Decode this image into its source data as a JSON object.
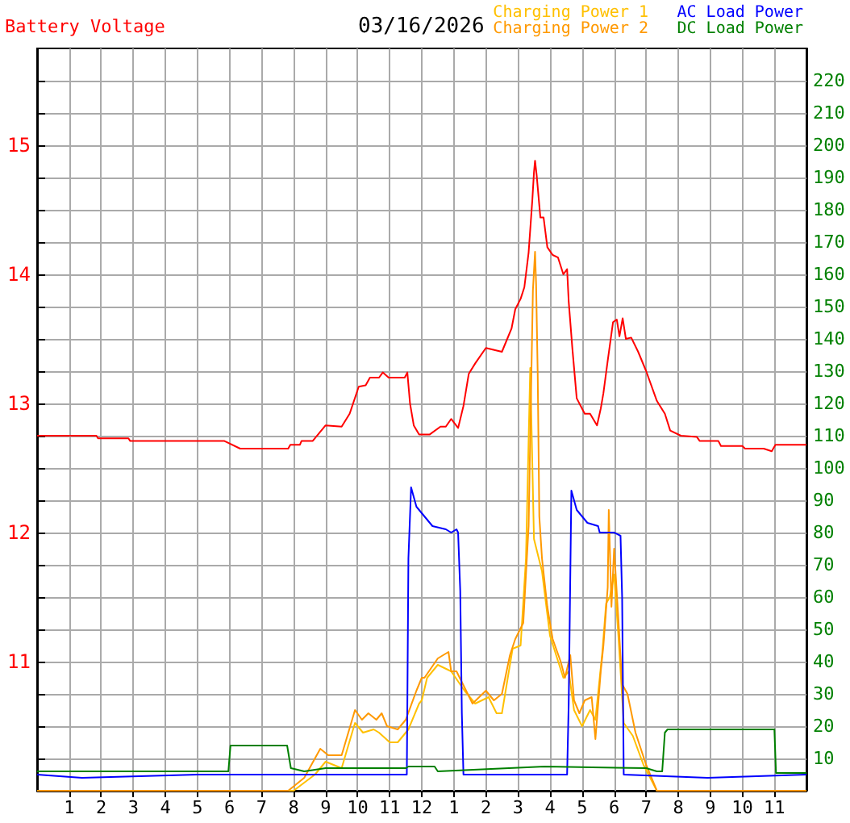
{
  "chart_data": {
    "type": "line",
    "title": "03/16/2026",
    "ylabel": "Battery Voltage",
    "legend": "top right",
    "grid": true,
    "marker": "none",
    "xlim": [
      "2026-03-16T00:00",
      "2026-03-17T00:00"
    ],
    "xticks": [
      {
        "value": "2026-03-16T01:00",
        "label": "1"
      },
      {
        "value": "2026-03-16T02:00",
        "label": "2"
      },
      {
        "value": "2026-03-16T03:00",
        "label": "3"
      },
      {
        "value": "2026-03-16T04:00",
        "label": "4"
      },
      {
        "value": "2026-03-16T05:00",
        "label": "5"
      },
      {
        "value": "2026-03-16T06:00",
        "label": "6"
      },
      {
        "value": "2026-03-16T07:00",
        "label": "7"
      },
      {
        "value": "2026-03-16T08:00",
        "label": "8"
      },
      {
        "value": "2026-03-16T09:00",
        "label": "9"
      },
      {
        "value": "2026-03-16T10:00",
        "label": "10"
      },
      {
        "value": "2026-03-16T11:00",
        "label": "11"
      },
      {
        "value": "2026-03-16T12:00",
        "label": "12"
      },
      {
        "value": "2026-03-16T13:00",
        "label": "1"
      },
      {
        "value": "2026-03-16T14:00",
        "label": "2"
      },
      {
        "value": "2026-03-16T15:00",
        "label": "3"
      },
      {
        "value": "2026-03-16T16:00",
        "label": "4"
      },
      {
        "value": "2026-03-16T17:00",
        "label": "5"
      },
      {
        "value": "2026-03-16T18:00",
        "label": "6"
      },
      {
        "value": "2026-03-16T19:00",
        "label": "7"
      },
      {
        "value": "2026-03-16T20:00",
        "label": "8"
      },
      {
        "value": "2026-03-16T21:00",
        "label": "9"
      },
      {
        "value": "2026-03-16T22:00",
        "label": "10"
      },
      {
        "value": "2026-03-16T23:00",
        "label": "11"
      }
    ],
    "ylim": [
      10,
      15.75
    ],
    "yticks": [
      {
        "value": 10.25,
        "label": null
      },
      {
        "value": 10.5,
        "label": null
      },
      {
        "value": 10.75,
        "label": null
      },
      11,
      {
        "value": 11.25,
        "label": null
      },
      {
        "value": 11.5,
        "label": null
      },
      {
        "value": 11.75,
        "label": null
      },
      12,
      {
        "value": 12.25,
        "label": null
      },
      {
        "value": 12.5,
        "label": null
      },
      {
        "value": 12.75,
        "label": null
      },
      13,
      {
        "value": 13.25,
        "label": null
      },
      {
        "value": 13.5,
        "label": null
      },
      {
        "value": 13.75,
        "label": null
      },
      14,
      {
        "value": 14.25,
        "label": null
      },
      {
        "value": 14.5,
        "label": null
      },
      {
        "value": 14.75,
        "label": null
      },
      15,
      {
        "value": 15.25,
        "label": null
      },
      {
        "value": 15.5,
        "label": null
      }
    ],
    "y2lim": [
      0,
      230
    ],
    "y2ticks": [
      10,
      20,
      30,
      40,
      50,
      60,
      70,
      80,
      90,
      100,
      110,
      120,
      130,
      140,
      150,
      160,
      170,
      180,
      190,
      200,
      210,
      220
    ],
    "series": [
      {
        "name": "Charging Power 1",
        "color": "#ffc000",
        "axis": "y2",
        "x": [
          "2026-03-16T00:00",
          "2026-03-16T08:00",
          "2026-03-16T08:40",
          "2026-03-16T09:00",
          "2026-03-16T09:30",
          "2026-03-16T09:55",
          "2026-03-16T10:10",
          "2026-03-16T10:30",
          "2026-03-16T10:40",
          "2026-03-16T11:00",
          "2026-03-16T11:15",
          "2026-03-16T11:35",
          "2026-03-16T11:55",
          "2026-03-16T12:00",
          "2026-03-16T12:10",
          "2026-03-16T12:30",
          "2026-03-16T12:55",
          "2026-03-16T13:20",
          "2026-03-16T13:40",
          "2026-03-16T14:05",
          "2026-03-16T14:20",
          "2026-03-16T14:30",
          "2026-03-16T14:50",
          "2026-03-16T15:05",
          "2026-03-16T15:15",
          "2026-03-16T15:23",
          "2026-03-16T15:30",
          "2026-03-16T15:45",
          "2026-03-16T16:00",
          "2026-03-16T16:25",
          "2026-03-16T16:35",
          "2026-03-16T16:45",
          "2026-03-16T17:00",
          "2026-03-16T17:15",
          "2026-03-16T17:25",
          "2026-03-16T17:38",
          "2026-03-16T17:45",
          "2026-03-16T17:52",
          "2026-03-16T18:00",
          "2026-03-16T18:08",
          "2026-03-16T18:18",
          "2026-03-16T18:35",
          "2026-03-16T18:55",
          "2026-03-16T19:20",
          "2026-03-17T00:00"
        ],
        "values": [
          0,
          0,
          5,
          9,
          7,
          21,
          18,
          19,
          18,
          15,
          15,
          19,
          27,
          28,
          35,
          39,
          37,
          31,
          27,
          29,
          24,
          24,
          44,
          45,
          72,
          131,
          78,
          68,
          48,
          35,
          37,
          25,
          20,
          25,
          22,
          43,
          58,
          60,
          67,
          48,
          21,
          17,
          8,
          0,
          0
        ]
      },
      {
        "name": "Charging Power 2",
        "color": "#ff9900",
        "axis": "y2",
        "x": [
          "2026-03-16T00:00",
          "2026-03-16T07:50",
          "2026-03-16T08:20",
          "2026-03-16T08:50",
          "2026-03-16T09:05",
          "2026-03-16T09:30",
          "2026-03-16T09:55",
          "2026-03-16T10:08",
          "2026-03-16T10:20",
          "2026-03-16T10:35",
          "2026-03-16T10:45",
          "2026-03-16T10:55",
          "2026-03-16T11:15",
          "2026-03-16T11:30",
          "2026-03-16T11:50",
          "2026-03-16T12:00",
          "2026-03-16T12:05",
          "2026-03-16T12:30",
          "2026-03-16T12:50",
          "2026-03-16T12:55",
          "2026-03-16T13:05",
          "2026-03-16T13:20",
          "2026-03-16T13:35",
          "2026-03-16T14:00",
          "2026-03-16T14:15",
          "2026-03-16T14:30",
          "2026-03-16T14:45",
          "2026-03-16T14:55",
          "2026-03-16T15:10",
          "2026-03-16T15:20",
          "2026-03-16T15:28",
          "2026-03-16T15:32",
          "2026-03-16T15:34",
          "2026-03-16T15:37",
          "2026-03-16T15:40",
          "2026-03-16T15:45",
          "2026-03-16T15:55",
          "2026-03-16T16:05",
          "2026-03-16T16:20",
          "2026-03-16T16:28",
          "2026-03-16T16:38",
          "2026-03-16T16:45",
          "2026-03-16T16:55",
          "2026-03-16T17:05",
          "2026-03-16T17:18",
          "2026-03-16T17:25",
          "2026-03-16T17:35",
          "2026-03-16T17:40",
          "2026-03-16T17:48",
          "2026-03-16T17:50",
          "2026-03-16T17:55",
          "2026-03-16T18:00",
          "2026-03-16T18:08",
          "2026-03-16T18:15",
          "2026-03-16T18:25",
          "2026-03-16T18:40",
          "2026-03-16T19:00",
          "2026-03-16T19:20",
          "2026-03-17T00:00"
        ],
        "values": [
          0,
          0,
          4,
          13,
          11,
          11,
          25,
          22,
          24,
          22,
          24,
          20,
          19,
          22,
          31,
          35,
          35,
          41,
          43,
          37,
          37,
          32,
          27,
          31,
          28,
          30,
          42,
          47,
          52,
          82,
          155,
          167,
          157,
          129,
          85,
          72,
          57,
          47,
          40,
          35,
          42,
          28,
          24,
          28,
          29,
          16,
          37,
          45,
          63,
          87,
          57,
          75,
          53,
          33,
          30,
          18,
          8,
          0,
          0
        ]
      },
      {
        "name": "AC Load Power",
        "color": "#0000ff",
        "axis": "y2",
        "x": [
          "2026-03-16T00:00",
          "2026-03-16T01:24",
          "2026-03-16T05:00",
          "2026-03-16T09:00",
          "2026-03-16T11:32",
          "2026-03-16T11:35",
          "2026-03-16T11:40",
          "2026-03-16T11:50",
          "2026-03-16T12:00",
          "2026-03-16T12:20",
          "2026-03-16T12:45",
          "2026-03-16T12:55",
          "2026-03-16T13:05",
          "2026-03-16T13:08",
          "2026-03-16T13:12",
          "2026-03-16T13:15",
          "2026-03-16T13:18",
          "2026-03-16T16:32",
          "2026-03-16T16:35",
          "2026-03-16T16:40",
          "2026-03-16T16:50",
          "2026-03-16T17:10",
          "2026-03-16T17:30",
          "2026-03-16T17:33",
          "2026-03-16T18:00",
          "2026-03-16T18:12",
          "2026-03-16T18:15",
          "2026-03-16T18:18",
          "2026-03-16T20:55",
          "2026-03-17T00:00"
        ],
        "values": [
          5,
          4,
          5,
          5,
          5,
          72,
          94,
          88,
          86,
          82,
          81,
          80,
          81,
          80,
          62,
          24,
          5,
          5,
          27,
          93,
          87,
          83,
          82,
          80,
          80,
          79,
          60,
          5,
          4,
          5
        ]
      },
      {
        "name": "DC Load Power",
        "color": "#008000",
        "axis": "y2",
        "x": [
          "2026-03-16T00:00",
          "2026-03-16T05:58",
          "2026-03-16T06:02",
          "2026-03-16T07:48",
          "2026-03-16T07:55",
          "2026-03-16T08:20",
          "2026-03-16T09:00",
          "2026-03-16T10:00",
          "2026-03-16T11:30",
          "2026-03-16T11:35",
          "2026-03-16T12:24",
          "2026-03-16T12:30",
          "2026-03-16T15:50",
          "2026-03-16T19:00",
          "2026-03-16T19:20",
          "2026-03-16T19:30",
          "2026-03-16T19:35",
          "2026-03-16T19:40",
          "2026-03-16T22:00",
          "2026-03-16T22:05",
          "2026-03-16T23:00",
          "2026-03-16T23:03",
          "2026-03-17T00:00"
        ],
        "values": [
          6,
          6,
          14,
          14,
          7,
          6,
          7,
          7,
          7,
          7.5,
          7.5,
          6,
          7.5,
          7,
          6,
          6,
          18,
          19,
          19,
          19,
          19,
          5.5,
          5.5
        ]
      },
      {
        "color": "#ff0000",
        "x": [
          "2026-03-16T00:00",
          "2026-03-16T01:51",
          "2026-03-16T01:54",
          "2026-03-16T02:51",
          "2026-03-16T02:54",
          "2026-03-16T05:50",
          "2026-03-16T06:20",
          "2026-03-16T07:50",
          "2026-03-16T07:54",
          "2026-03-16T08:12",
          "2026-03-16T08:15",
          "2026-03-16T08:36",
          "2026-03-16T09:00",
          "2026-03-16T09:30",
          "2026-03-16T09:45",
          "2026-03-16T10:02",
          "2026-03-16T10:15",
          "2026-03-16T10:23",
          "2026-03-16T10:40",
          "2026-03-16T10:47",
          "2026-03-16T10:58",
          "2026-03-16T11:28",
          "2026-03-16T11:33",
          "2026-03-16T11:38",
          "2026-03-16T11:45",
          "2026-03-16T11:55",
          "2026-03-16T12:15",
          "2026-03-16T12:35",
          "2026-03-16T12:45",
          "2026-03-16T12:55",
          "2026-03-16T13:08",
          "2026-03-16T13:18",
          "2026-03-16T13:28",
          "2026-03-16T13:40",
          "2026-03-16T14:00",
          "2026-03-16T14:30",
          "2026-03-16T14:40",
          "2026-03-16T14:48",
          "2026-03-16T14:55",
          "2026-03-16T15:05",
          "2026-03-16T15:12",
          "2026-03-16T15:20",
          "2026-03-16T15:27",
          "2026-03-16T15:30",
          "2026-03-16T15:32",
          "2026-03-16T15:35",
          "2026-03-16T15:42",
          "2026-03-16T15:48",
          "2026-03-16T15:55",
          "2026-03-16T16:05",
          "2026-03-16T16:15",
          "2026-03-16T16:25",
          "2026-03-16T16:32",
          "2026-03-16T16:35",
          "2026-03-16T16:42",
          "2026-03-16T16:50",
          "2026-03-16T17:05",
          "2026-03-16T17:15",
          "2026-03-16T17:28",
          "2026-03-16T17:35",
          "2026-03-16T17:40",
          "2026-03-16T17:48",
          "2026-03-16T17:58",
          "2026-03-16T18:05",
          "2026-03-16T18:10",
          "2026-03-16T18:16",
          "2026-03-16T18:22",
          "2026-03-16T18:32",
          "2026-03-16T18:45",
          "2026-03-16T19:00",
          "2026-03-16T19:20",
          "2026-03-16T19:35",
          "2026-03-16T19:45",
          "2026-03-16T20:05",
          "2026-03-16T20:35",
          "2026-03-16T20:40",
          "2026-03-16T21:15",
          "2026-03-16T21:20",
          "2026-03-16T22:00",
          "2026-03-16T22:05",
          "2026-03-16T22:40",
          "2026-03-16T22:55",
          "2026-03-16T23:02",
          "2026-03-17T00:00"
        ],
        "values": [
          12.75,
          12.75,
          12.73,
          12.73,
          12.71,
          12.71,
          12.65,
          12.65,
          12.68,
          12.68,
          12.71,
          12.71,
          12.83,
          12.82,
          12.92,
          13.13,
          13.14,
          13.2,
          13.2,
          13.24,
          13.2,
          13.2,
          13.24,
          13,
          12.83,
          12.76,
          12.76,
          12.82,
          12.82,
          12.88,
          12.81,
          12.98,
          13.23,
          13.31,
          13.43,
          13.4,
          13.5,
          13.58,
          13.73,
          13.81,
          13.9,
          14.17,
          14.58,
          14.79,
          14.88,
          14.77,
          14.44,
          14.44,
          14.21,
          14.15,
          14.13,
          14,
          14.04,
          13.79,
          13.42,
          13.04,
          12.92,
          12.92,
          12.83,
          12.96,
          13.08,
          13.33,
          13.63,
          13.65,
          13.52,
          13.66,
          13.5,
          13.51,
          13.4,
          13.25,
          13.02,
          12.92,
          12.79,
          12.75,
          12.74,
          12.71,
          12.71,
          12.67,
          12.67,
          12.65,
          12.65,
          12.63,
          12.68,
          12.68
        ]
      }
    ]
  }
}
